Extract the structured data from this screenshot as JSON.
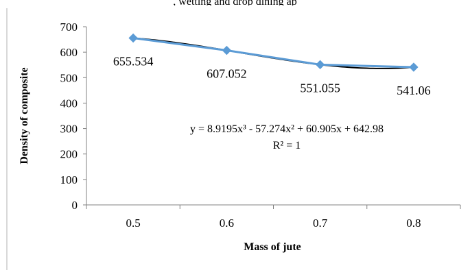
{
  "page": {
    "top_partial_text": ", wetting and drop dining ap"
  },
  "chart_data": {
    "type": "line",
    "title": "",
    "xlabel": "Mass of jute",
    "ylabel": "Density of composite",
    "categories": [
      "0.5",
      "0.6",
      "0.7",
      "0.8"
    ],
    "x": [
      0.5,
      0.6,
      0.7,
      0.8
    ],
    "series": [
      {
        "values": [
          655.534,
          607.052,
          551.055,
          541.06
        ],
        "color": "#5b9bd5",
        "marker": "diamond"
      }
    ],
    "data_labels": [
      "655.534",
      "607.052",
      "551.055",
      "541.06"
    ],
    "trendline": {
      "type": "polynomial",
      "order": 3,
      "coefficients": [
        8.9195,
        -57.274,
        60.905,
        642.98
      ],
      "color": "#000000",
      "equation": "y = 8.9195x³ - 57.274x² + 60.905x + 642.98",
      "r_squared": "R² = 1"
    },
    "ylim": [
      0,
      700
    ],
    "yticks": [
      0,
      100,
      200,
      300,
      400,
      500,
      600,
      700
    ],
    "grid": false,
    "legend": "none"
  }
}
